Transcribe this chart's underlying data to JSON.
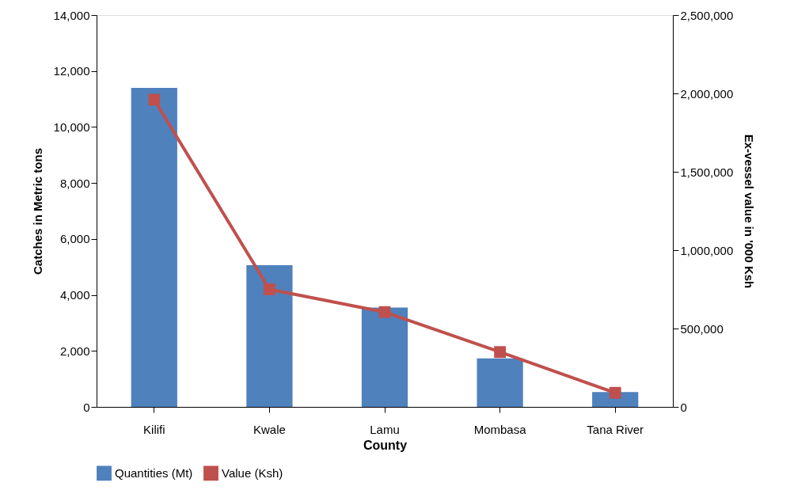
{
  "chart_data": {
    "type": "bar",
    "xlabel": "County",
    "ylabel": "Catches in Metric tons",
    "y2label": "Ex-vessel value in '000  Ksh",
    "categories": [
      "Kilifi",
      "Kwale",
      "Lamu",
      "Mombasa",
      "Tana River"
    ],
    "series": [
      {
        "name": "Quantities (Mt)",
        "color": "#4f81bd",
        "values": [
          11400,
          5060,
          3550,
          1730,
          530
        ]
      },
      {
        "name": "Value (Ksh)",
        "type": "line",
        "axis": "y2",
        "color": "#c0504d",
        "marker": "square",
        "values": [
          1960000,
          750000,
          605000,
          350000,
          90000
        ]
      }
    ],
    "ylim": [
      0,
      14000
    ],
    "yticks": [
      0,
      {
        "value": 2000,
        "label": "2,000"
      },
      {
        "value": 4000,
        "label": "4,000"
      },
      {
        "value": 6000,
        "label": "6,000"
      },
      {
        "value": 8000,
        "label": "8,000"
      },
      {
        "value": 10000,
        "label": "10,000"
      },
      {
        "value": 12000,
        "label": "12,000"
      },
      {
        "value": 14000,
        "label": "14,000"
      }
    ],
    "y2lim": [
      0,
      2500000
    ],
    "y2ticks": [
      0,
      {
        "value": 500000,
        "label": "500,000"
      },
      {
        "value": 1000000,
        "label": "1,000,000"
      },
      {
        "value": 1500000,
        "label": "1,500,000"
      },
      {
        "value": 2000000,
        "label": "2,000,000"
      },
      {
        "value": 2500000,
        "label": "2,500,000"
      }
    ],
    "grid": false,
    "legend": "bottom"
  }
}
